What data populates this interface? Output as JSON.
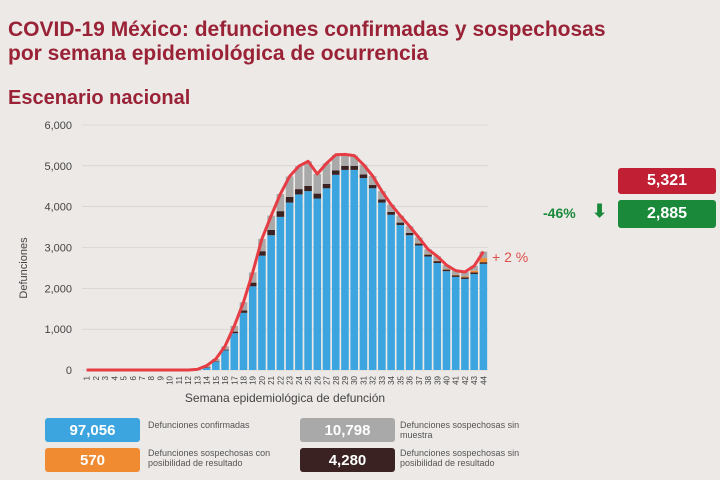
{
  "header": {
    "title_line1": "COVID-19 México: defunciones confirmadas y sospechosas",
    "title_line2": "por semana epidemiológica de ocurrencia",
    "subtitle": "Escenario nacional"
  },
  "summary": {
    "total_label": "5,321",
    "confirmed_label": "2,885",
    "change_label": "-46%",
    "change_arrow": "⬇",
    "trend_label": "+ 2 %",
    "colors": {
      "total": "#c11f33",
      "confirmed": "#1a8a3a",
      "change": "#1a8a3a",
      "trend": "#e0504a"
    }
  },
  "legend": [
    {
      "value": "97,056",
      "text": "Defunciones confirmadas",
      "color": "#3ca5e0"
    },
    {
      "value": "10,798",
      "text": "Defunciones sospechosas sin muestra",
      "color": "#a9a9a9"
    },
    {
      "value": "570",
      "text": "Defunciones sospechosas con posibilidad de resultado",
      "color": "#f08b32"
    },
    {
      "value": "4,280",
      "text": "Defunciones sospechosas sin posibilidad de resultado",
      "color": "#3a2222"
    }
  ],
  "chart_data": {
    "type": "bar",
    "stacked": true,
    "xlabel": "Semana epidemiológica de defunción",
    "ylabel": "Defunciones",
    "ylim": [
      0,
      6000
    ],
    "yticks": [
      0,
      1000,
      2000,
      3000,
      4000,
      5000,
      6000
    ],
    "ytick_labels": [
      "0",
      "1,000",
      "2,000",
      "3,000",
      "4,000",
      "5,000",
      "6,000"
    ],
    "categories": [
      "1",
      "2",
      "3",
      "4",
      "5",
      "6",
      "7",
      "8",
      "9",
      "10",
      "11",
      "12",
      "13",
      "14",
      "15",
      "16",
      "17",
      "18",
      "19",
      "20",
      "21",
      "22",
      "23",
      "24",
      "25",
      "26",
      "27",
      "28",
      "29",
      "30",
      "31",
      "32",
      "33",
      "34",
      "35",
      "36",
      "37",
      "38",
      "39",
      "40",
      "41",
      "42",
      "43",
      "44"
    ],
    "series": [
      {
        "name": "Defunciones confirmadas",
        "color": "#3ca5e0",
        "values": [
          0,
          0,
          0,
          0,
          0,
          0,
          0,
          0,
          0,
          0,
          0,
          0,
          5,
          60,
          200,
          480,
          900,
          1400,
          2050,
          2800,
          3300,
          3750,
          4100,
          4300,
          4380,
          4200,
          4450,
          4780,
          4900,
          4900,
          4700,
          4450,
          4100,
          3800,
          3550,
          3300,
          3050,
          2780,
          2620,
          2420,
          2280,
          2230,
          2350,
          2600
        ]
      },
      {
        "name": "Defunciones sospechosas sin posibilidad de resultado",
        "color": "#3a2222",
        "values": [
          0,
          0,
          0,
          0,
          0,
          0,
          0,
          0,
          0,
          0,
          0,
          0,
          0,
          5,
          10,
          20,
          40,
          60,
          90,
          110,
          130,
          140,
          140,
          130,
          130,
          120,
          110,
          110,
          100,
          100,
          90,
          80,
          80,
          70,
          60,
          60,
          50,
          50,
          50,
          40,
          40,
          40,
          40,
          40
        ]
      },
      {
        "name": "Defunciones sospechosas con posibilidad de resultado",
        "color": "#f08b32",
        "values": [
          0,
          0,
          0,
          0,
          0,
          0,
          0,
          0,
          0,
          0,
          0,
          0,
          0,
          0,
          0,
          0,
          0,
          0,
          0,
          0,
          0,
          0,
          0,
          0,
          0,
          0,
          0,
          0,
          0,
          0,
          0,
          0,
          0,
          0,
          0,
          0,
          5,
          5,
          5,
          10,
          15,
          20,
          40,
          100
        ]
      },
      {
        "name": "Defunciones sospechosas sin muestra",
        "color": "#a9a9a9",
        "values": [
          0,
          0,
          0,
          0,
          0,
          0,
          0,
          0,
          0,
          0,
          0,
          0,
          10,
          40,
          60,
          80,
          140,
          200,
          250,
          300,
          350,
          420,
          500,
          560,
          600,
          480,
          500,
          380,
          280,
          250,
          240,
          220,
          200,
          180,
          170,
          160,
          140,
          120,
          110,
          100,
          100,
          110,
          120,
          160
        ]
      }
    ],
    "total_line": {
      "color": "#e63d45",
      "values": [
        0,
        0,
        0,
        0,
        0,
        0,
        0,
        0,
        0,
        0,
        0,
        0,
        15,
        105,
        270,
        580,
        1080,
        1660,
        2390,
        3210,
        3780,
        4310,
        4740,
        4990,
        5110,
        4800,
        5060,
        5270,
        5280,
        5250,
        5030,
        4750,
        4380,
        4050,
        3780,
        3520,
        3245,
        2955,
        2785,
        2570,
        2435,
        2400,
        2550,
        2900
      ]
    }
  }
}
